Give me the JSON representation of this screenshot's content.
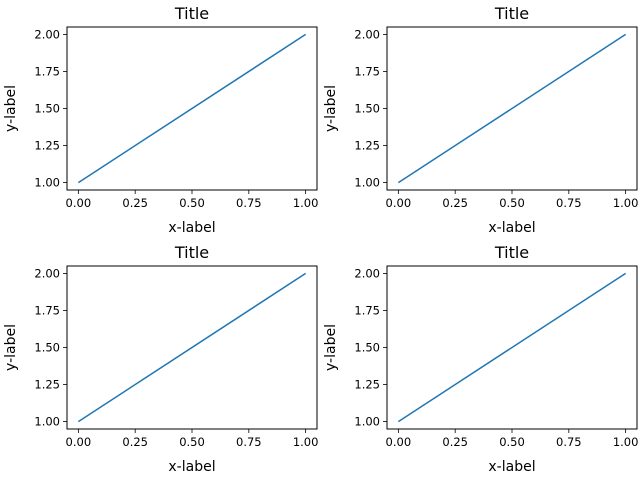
{
  "chart_data": [
    {
      "type": "line",
      "title": "Title",
      "xlabel": "x-label",
      "ylabel": "y-label",
      "x": [
        0,
        1
      ],
      "series": [
        {
          "values": [
            1,
            2
          ],
          "color": "#1f77b4"
        }
      ],
      "xlim": [
        -0.05,
        1.05
      ],
      "ylim": [
        0.95,
        2.05
      ],
      "xticks": [
        0.0,
        0.25,
        0.5,
        0.75,
        1.0
      ],
      "xtick_labels": [
        "0.00",
        "0.25",
        "0.50",
        "0.75",
        "1.00"
      ],
      "yticks": [
        1.0,
        1.25,
        1.5,
        1.75,
        2.0
      ],
      "ytick_labels": [
        "1.00",
        "1.25",
        "1.50",
        "1.75",
        "2.00"
      ],
      "grid": false,
      "legend": false
    },
    {
      "type": "line",
      "title": "Title",
      "xlabel": "x-label",
      "ylabel": "y-label",
      "x": [
        0,
        1
      ],
      "series": [
        {
          "values": [
            1,
            2
          ],
          "color": "#1f77b4"
        }
      ],
      "xlim": [
        -0.05,
        1.05
      ],
      "ylim": [
        0.95,
        2.05
      ],
      "xticks": [
        0.0,
        0.25,
        0.5,
        0.75,
        1.0
      ],
      "xtick_labels": [
        "0.00",
        "0.25",
        "0.50",
        "0.75",
        "1.00"
      ],
      "yticks": [
        1.0,
        1.25,
        1.5,
        1.75,
        2.0
      ],
      "ytick_labels": [
        "1.00",
        "1.25",
        "1.50",
        "1.75",
        "2.00"
      ],
      "grid": false,
      "legend": false
    },
    {
      "type": "line",
      "title": "Title",
      "xlabel": "x-label",
      "ylabel": "y-label",
      "x": [
        0,
        1
      ],
      "series": [
        {
          "values": [
            1,
            2
          ],
          "color": "#1f77b4"
        }
      ],
      "xlim": [
        -0.05,
        1.05
      ],
      "ylim": [
        0.95,
        2.05
      ],
      "xticks": [
        0.0,
        0.25,
        0.5,
        0.75,
        1.0
      ],
      "xtick_labels": [
        "0.00",
        "0.25",
        "0.50",
        "0.75",
        "1.00"
      ],
      "yticks": [
        1.0,
        1.25,
        1.5,
        1.75,
        2.0
      ],
      "ytick_labels": [
        "1.00",
        "1.25",
        "1.50",
        "1.75",
        "2.00"
      ],
      "grid": false,
      "legend": false
    },
    {
      "type": "line",
      "title": "Title",
      "xlabel": "x-label",
      "ylabel": "y-label",
      "x": [
        0,
        1
      ],
      "series": [
        {
          "values": [
            1,
            2
          ],
          "color": "#1f77b4"
        }
      ],
      "xlim": [
        -0.05,
        1.05
      ],
      "ylim": [
        0.95,
        2.05
      ],
      "xticks": [
        0.0,
        0.25,
        0.5,
        0.75,
        1.0
      ],
      "xtick_labels": [
        "0.00",
        "0.25",
        "0.50",
        "0.75",
        "1.00"
      ],
      "yticks": [
        1.0,
        1.25,
        1.5,
        1.75,
        2.0
      ],
      "ytick_labels": [
        "1.00",
        "1.25",
        "1.50",
        "1.75",
        "2.00"
      ],
      "grid": false,
      "legend": false
    }
  ]
}
